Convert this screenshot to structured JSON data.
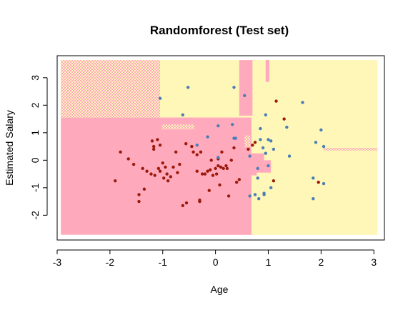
{
  "chart_data": {
    "type": "scatter",
    "title": "Randomforest (Test set)",
    "xlabel": "Age",
    "ylabel": "Estimated Salary",
    "xlim": [
      -3.0,
      3.2
    ],
    "ylim": [
      -2.9,
      3.8
    ],
    "xticks": [
      -3,
      -2,
      -1,
      0,
      1,
      2,
      3
    ],
    "yticks": [
      -2,
      -1,
      0,
      1,
      2,
      3
    ],
    "xtick_labels": [
      "-3",
      "-2",
      "-1",
      "0",
      "1",
      "2",
      "3"
    ],
    "ytick_labels": [
      "-2",
      "-1",
      "0",
      "1",
      "2",
      "3"
    ],
    "grid": false,
    "colors": {
      "region_class_0": "#ffaabc",
      "region_class_1": "#fff7b8",
      "mixed_region_a": "#fde3c0",
      "mixed_region_b": "#fbd3d0",
      "class_0_point": "#9b1a0c",
      "class_1_point": "#4a7eb6"
    },
    "region_grid": {
      "x_range": [
        -2.93,
        3.07
      ],
      "y_range": [
        -2.71,
        3.64
      ],
      "class_0_rects": [
        [
          -2.93,
          0.68,
          -2.71,
          1.55
        ],
        [
          -1.05,
          0.68,
          -2.71,
          1.55
        ],
        [
          0.1,
          0.2,
          1.0,
          1.3
        ],
        [
          0.45,
          0.65,
          0.48,
          0.85
        ],
        [
          0.45,
          0.7,
          1.62,
          3.64
        ],
        [
          0.66,
          0.92,
          -0.45,
          0.25
        ],
        [
          0.92,
          1.05,
          -0.45,
          0.0
        ],
        [
          0.95,
          1.02,
          2.85,
          3.64
        ],
        [
          0.65,
          0.78,
          -0.55,
          -0.35
        ]
      ],
      "class_1_rects": [
        [
          -1.05,
          0.45,
          1.55,
          3.64
        ],
        [
          0.7,
          3.07,
          -2.71,
          3.64
        ],
        [
          0.68,
          3.07,
          -2.71,
          -0.45
        ],
        [
          -1.02,
          0.45,
          1.12,
          1.3
        ],
        [
          0.22,
          0.45,
          0.48,
          1.0
        ],
        [
          0.5,
          0.58,
          1.7,
          3.3
        ],
        [
          1.02,
          1.07,
          -0.1,
          0.25
        ]
      ],
      "mixed_rects": [
        [
          -2.93,
          -1.05,
          1.55,
          3.64
        ],
        [
          -1.02,
          -0.4,
          1.12,
          1.3
        ],
        [
          0.55,
          0.66,
          0.48,
          0.9
        ],
        [
          2.05,
          3.07,
          0.35,
          0.45
        ]
      ]
    },
    "series": [
      {
        "values": [
          [
            -1.9,
            -0.75
          ],
          [
            -1.8,
            0.3
          ],
          [
            -1.65,
            0.05
          ],
          [
            -1.55,
            -0.15
          ],
          [
            -1.45,
            -1.25
          ],
          [
            -1.45,
            -1.5
          ],
          [
            -1.38,
            -0.3
          ],
          [
            -1.35,
            -1.05
          ],
          [
            -1.3,
            -0.4
          ],
          [
            -1.22,
            -0.5
          ],
          [
            -1.2,
            0.7
          ],
          [
            -1.17,
            0.5
          ],
          [
            -1.17,
            0.4
          ],
          [
            -1.15,
            -0.55
          ],
          [
            -1.1,
            0.75
          ],
          [
            -1.08,
            -0.3
          ],
          [
            -1.05,
            -0.4
          ],
          [
            -1.05,
            0.55
          ],
          [
            -1.0,
            -0.1
          ],
          [
            -0.98,
            -0.65
          ],
          [
            -0.95,
            -0.25
          ],
          [
            -0.92,
            -0.5
          ],
          [
            -0.9,
            -0.75
          ],
          [
            -0.85,
            -0.6
          ],
          [
            -0.8,
            -0.25
          ],
          [
            -0.75,
            0.3
          ],
          [
            -0.72,
            -0.45
          ],
          [
            -0.68,
            -0.15
          ],
          [
            -0.62,
            -1.65
          ],
          [
            -0.56,
            0.6
          ],
          [
            -0.55,
            -1.55
          ],
          [
            -0.45,
            0.5
          ],
          [
            -0.42,
            0.3
          ],
          [
            -0.35,
            0.2
          ],
          [
            -0.35,
            -0.4
          ],
          [
            -0.3,
            -1.45
          ],
          [
            -0.3,
            -1.5
          ],
          [
            -0.28,
            0.3
          ],
          [
            -0.25,
            -0.5
          ],
          [
            -0.2,
            -0.5
          ],
          [
            -0.15,
            -0.4
          ],
          [
            -0.12,
            -1.1
          ],
          [
            -0.1,
            -0.35
          ],
          [
            -0.08,
            0.0
          ],
          [
            -0.05,
            -0.55
          ],
          [
            0.0,
            -0.3
          ],
          [
            0.02,
            -0.5
          ],
          [
            0.05,
            0.05
          ],
          [
            0.05,
            -0.2
          ],
          [
            0.08,
            -0.9
          ],
          [
            0.1,
            -0.25
          ],
          [
            0.12,
            0.3
          ],
          [
            0.15,
            -0.3
          ],
          [
            0.2,
            -0.2
          ],
          [
            0.22,
            -0.3
          ],
          [
            0.25,
            -1.3
          ],
          [
            0.3,
            0.0
          ],
          [
            0.35,
            0.45
          ],
          [
            0.4,
            -0.8
          ],
          [
            0.45,
            -0.7
          ],
          [
            0.62,
            0.4
          ],
          [
            0.7,
            0.55
          ],
          [
            0.75,
            0.65
          ],
          [
            1.1,
            -0.75
          ],
          [
            1.15,
            2.15
          ],
          [
            1.3,
            1.5
          ],
          [
            1.95,
            -0.8
          ]
        ]
      },
      {
        "values": [
          [
            -1.05,
            2.25
          ],
          [
            -0.52,
            2.65
          ],
          [
            -0.62,
            1.65
          ],
          [
            -0.35,
            0.55
          ],
          [
            -0.15,
            0.85
          ],
          [
            0.05,
            1.25
          ],
          [
            0.35,
            2.65
          ],
          [
            0.32,
            1.3
          ],
          [
            0.35,
            0.8
          ],
          [
            0.55,
            2.35
          ],
          [
            0.65,
            0.15
          ],
          [
            0.65,
            -1.3
          ],
          [
            0.75,
            -1.25
          ],
          [
            0.8,
            -0.65
          ],
          [
            0.8,
            -0.3
          ],
          [
            0.82,
            -1.4
          ],
          [
            0.85,
            1.15
          ],
          [
            0.85,
            0.75
          ],
          [
            0.9,
            0.45
          ],
          [
            0.92,
            -1.2
          ],
          [
            0.92,
            -1.25
          ],
          [
            0.95,
            1.65
          ],
          [
            0.95,
            0.25
          ],
          [
            1.0,
            0.75
          ],
          [
            1.0,
            -0.2
          ],
          [
            1.05,
            -1.0
          ],
          [
            1.05,
            0.7
          ],
          [
            1.1,
            0.4
          ],
          [
            1.35,
            1.2
          ],
          [
            1.4,
            0.15
          ],
          [
            1.65,
            2.1
          ],
          [
            1.85,
            -0.65
          ],
          [
            1.85,
            -1.4
          ],
          [
            1.9,
            0.65
          ],
          [
            2.0,
            1.1
          ],
          [
            2.05,
            0.5
          ],
          [
            2.05,
            -0.85
          ],
          [
            0.05,
            0.1
          ],
          [
            0.38,
            0.8
          ]
        ]
      }
    ]
  }
}
